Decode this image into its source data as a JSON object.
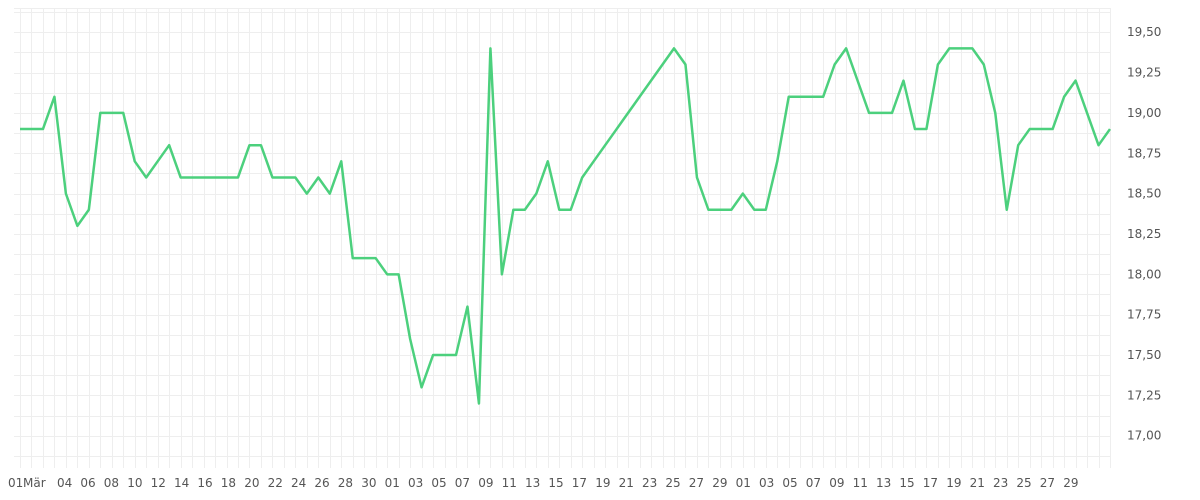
{
  "chart_data": {
    "type": "line",
    "title": "",
    "xlabel": "",
    "ylabel": "",
    "grid": true,
    "legend": "none",
    "y_axis_position": "right",
    "line_color": "#4cd07d",
    "grid_color": "#eeeeee",
    "ylim": [
      16.8,
      19.65
    ],
    "y_ticks": [
      17.0,
      17.25,
      17.5,
      17.75,
      18.0,
      18.25,
      18.5,
      18.75,
      19.0,
      19.25,
      19.5
    ],
    "y_tick_labels": [
      "17,00",
      "17,25",
      "17,50",
      "17,75",
      "18,00",
      "18,25",
      "18,50",
      "18,75",
      "19,00",
      "19,25",
      "19,50"
    ],
    "x_tick_labels": [
      "01",
      "Mär",
      "04",
      "06",
      "08",
      "10",
      "12",
      "14",
      "16",
      "18",
      "20",
      "22",
      "24",
      "26",
      "28",
      "30",
      "01",
      "03",
      "05",
      "07",
      "09",
      "11",
      "13",
      "15",
      "17",
      "19",
      "21",
      "23",
      "25",
      "27",
      "29",
      "01",
      "03",
      "05",
      "07",
      "09",
      "11",
      "13",
      "15",
      "17",
      "19",
      "21",
      "23",
      "25",
      "27",
      "29"
    ],
    "series": [
      {
        "values": [
          18.9,
          18.9,
          18.9,
          19.1,
          18.5,
          18.3,
          18.4,
          19.0,
          19.0,
          19.0,
          18.7,
          18.6,
          18.7,
          18.8,
          18.6,
          18.6,
          18.6,
          18.6,
          18.6,
          18.6,
          18.8,
          18.8,
          18.6,
          18.6,
          18.6,
          18.5,
          18.6,
          18.5,
          18.7,
          18.1,
          18.1,
          18.1,
          18.0,
          18.0,
          17.6,
          17.3,
          17.5,
          17.5,
          17.5,
          17.8,
          17.2,
          19.4,
          18.0,
          18.4,
          18.4,
          18.5,
          18.7,
          18.4,
          18.4,
          18.6,
          18.7,
          18.8,
          18.9,
          19.0,
          19.1,
          19.2,
          19.3,
          19.4,
          19.3,
          18.6,
          18.4,
          18.4,
          18.4,
          18.5,
          18.4,
          18.4,
          18.7,
          19.1,
          19.1,
          19.1,
          19.1,
          19.3,
          19.4,
          19.2,
          19.0,
          19.0,
          19.0,
          19.2,
          18.9,
          18.9,
          19.3,
          19.4,
          19.4,
          19.4,
          19.3,
          19.0,
          18.4,
          18.8,
          18.9,
          18.9,
          18.9,
          19.1,
          19.2,
          19.0,
          18.8,
          18.9
        ]
      }
    ]
  }
}
